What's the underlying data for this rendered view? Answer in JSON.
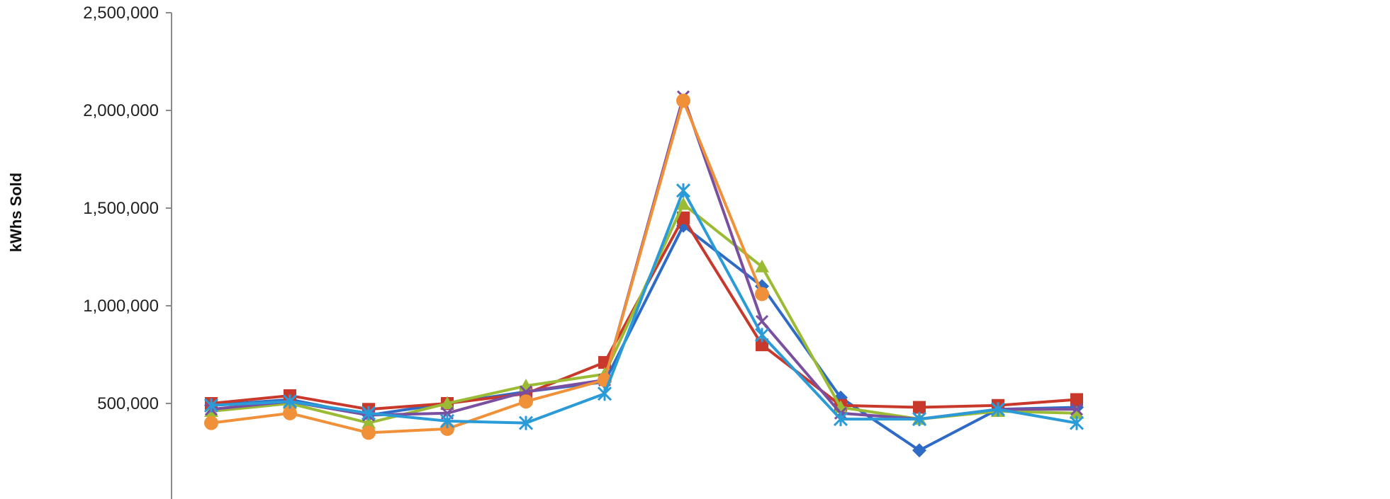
{
  "chart_data": {
    "type": "line",
    "title": "",
    "xlabel": "",
    "ylabel": "kWhs Sold",
    "ylim": [
      0,
      2500000
    ],
    "y_ticks": [
      500000,
      1000000,
      1500000,
      2000000,
      2500000
    ],
    "y_tick_labels": [
      "500,000",
      "1,000,000",
      "1,500,000",
      "2,000,000",
      "2,500,000"
    ],
    "grid": false,
    "legend": "none",
    "x": [
      1,
      2,
      3,
      4,
      5,
      6,
      7,
      8,
      9,
      10,
      11,
      12
    ],
    "series": [
      {
        "color": "#2E6BC6",
        "marker": "diamond",
        "values": [
          490000,
          520000,
          440000,
          500000,
          560000,
          610000,
          1410000,
          1100000,
          530000,
          260000,
          470000,
          480000
        ]
      },
      {
        "color": "#C8392B",
        "marker": "square",
        "values": [
          500000,
          540000,
          470000,
          500000,
          550000,
          710000,
          1450000,
          800000,
          490000,
          480000,
          490000,
          520000
        ]
      },
      {
        "color": "#9BBB35",
        "marker": "triangle",
        "values": [
          460000,
          500000,
          400000,
          500000,
          590000,
          650000,
          1520000,
          1200000,
          480000,
          420000,
          460000,
          450000
        ]
      },
      {
        "color": "#7A4FA0",
        "marker": "x",
        "values": [
          470000,
          510000,
          440000,
          450000,
          560000,
          620000,
          2070000,
          920000,
          450000,
          420000,
          470000,
          470000
        ]
      },
      {
        "color": "#F0913A",
        "marker": "circle",
        "values": [
          400000,
          450000,
          350000,
          370000,
          510000,
          620000,
          2050000,
          1060000,
          null,
          null,
          null,
          null
        ]
      },
      {
        "color": "#2B9BD8",
        "marker": "star",
        "values": [
          490000,
          510000,
          450000,
          410000,
          400000,
          550000,
          1590000,
          850000,
          420000,
          420000,
          470000,
          400000
        ]
      }
    ]
  }
}
